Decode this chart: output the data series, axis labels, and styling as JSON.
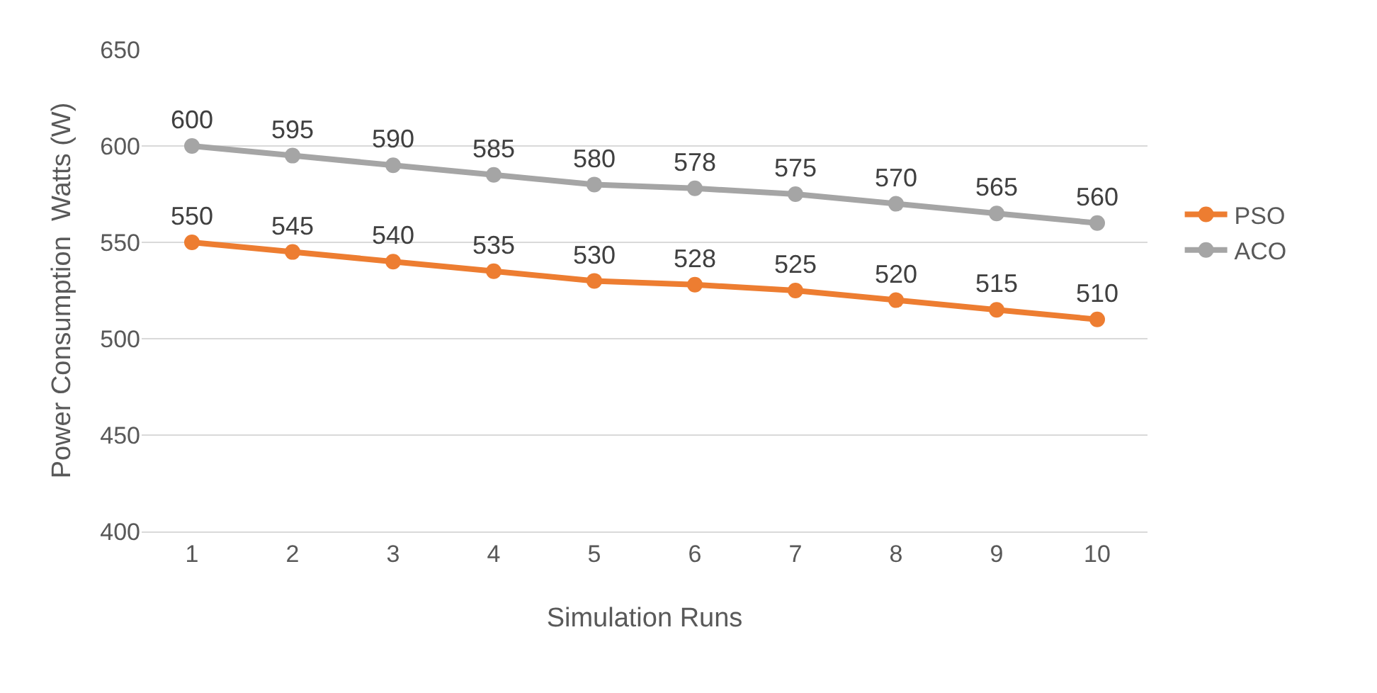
{
  "chart_data": {
    "type": "line",
    "xlabel": "Simulation Runs",
    "ylabel": "Power Consumption  Watts (W)",
    "categories": [
      "1",
      "2",
      "3",
      "4",
      "5",
      "6",
      "7",
      "8",
      "9",
      "10"
    ],
    "series": [
      {
        "name": "PSO",
        "color": "#ed7d31",
        "values": [
          550,
          545,
          540,
          535,
          530,
          528,
          525,
          520,
          515,
          510
        ]
      },
      {
        "name": "ACO",
        "color": "#a5a5a5",
        "values": [
          600,
          595,
          590,
          585,
          580,
          578,
          575,
          570,
          565,
          560
        ]
      }
    ],
    "ylim": [
      400,
      650
    ],
    "yticks": [
      400,
      450,
      500,
      550,
      600,
      650
    ],
    "grid": "y",
    "legend": "right",
    "marker": "circle",
    "line_style": "solid",
    "data_labels": true
  }
}
